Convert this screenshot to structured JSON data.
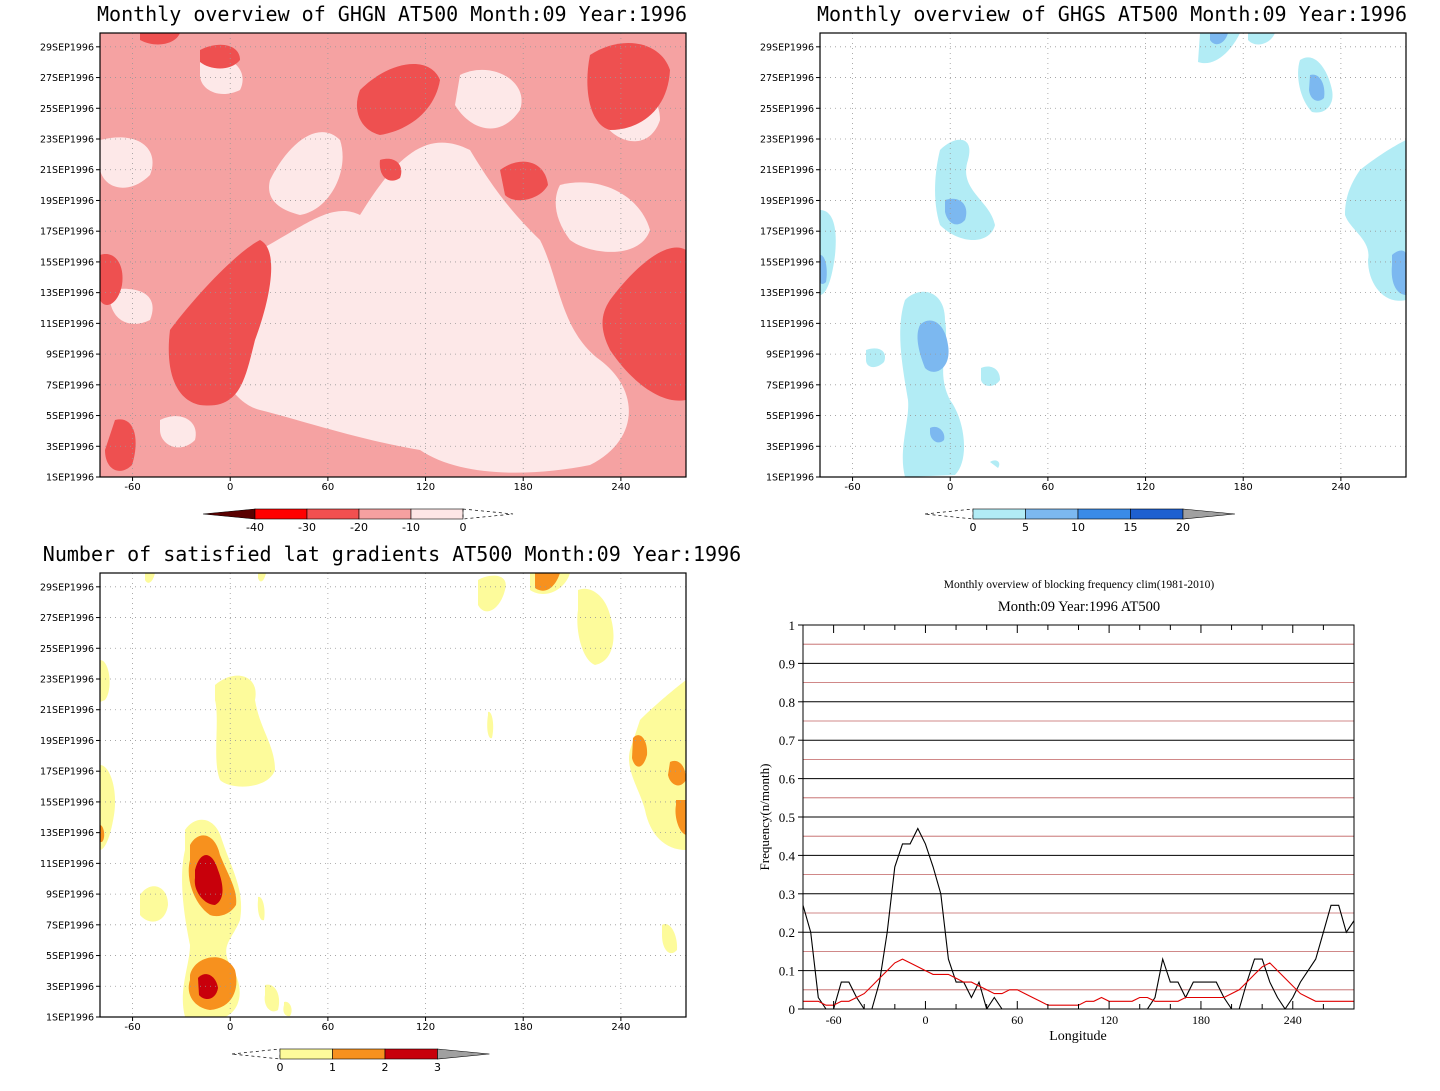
{
  "chart_data": [
    {
      "type": "heatmap",
      "title": "Monthly overview of GHGN AT500 Month:09 Year:1996",
      "y_ticks": [
        "1SEP1996",
        "3SEP1996",
        "5SEP1996",
        "7SEP1996",
        "9SEP1996",
        "11SEP1996",
        "13SEP1996",
        "15SEP1996",
        "17SEP1996",
        "19SEP1996",
        "21SEP1996",
        "23SEP1996",
        "25SEP1996",
        "27SEP1996",
        "29SEP1996"
      ],
      "x_ticks": [
        "-60",
        "0",
        "60",
        "120",
        "180",
        "240"
      ],
      "xlim": [
        -80,
        280
      ],
      "colorbar": {
        "labels": [
          "-40",
          "-30",
          "-20",
          "-10",
          "0"
        ],
        "colors": [
          "#5a0000",
          "#ff0000",
          "#f25050",
          "#f5a0a0",
          "#fde6e6"
        ]
      },
      "background_color": "#f5a2a2"
    },
    {
      "type": "heatmap",
      "title": "Monthly overview of GHGS AT500 Month:09 Year:1996",
      "y_ticks": [
        "1SEP1996",
        "3SEP1996",
        "5SEP1996",
        "7SEP1996",
        "9SEP1996",
        "11SEP1996",
        "13SEP1996",
        "15SEP1996",
        "17SEP1996",
        "19SEP1996",
        "21SEP1996",
        "23SEP1996",
        "25SEP1996",
        "27SEP1996",
        "29SEP1996"
      ],
      "x_ticks": [
        "-60",
        "0",
        "60",
        "120",
        "180",
        "240"
      ],
      "xlim": [
        -80,
        280
      ],
      "colorbar": {
        "labels": [
          "0",
          "5",
          "10",
          "15",
          "20"
        ],
        "colors": [
          "#b2ecf5",
          "#7cb8f0",
          "#3a8be8",
          "#1e60d0",
          "#a0a0a0"
        ]
      }
    },
    {
      "type": "heatmap",
      "title": "Number of satisfied lat gradients AT500 Month:09 Year:1996",
      "y_ticks": [
        "1SEP1996",
        "3SEP1996",
        "5SEP1996",
        "7SEP1996",
        "9SEP1996",
        "11SEP1996",
        "13SEP1996",
        "15SEP1996",
        "17SEP1996",
        "19SEP1996",
        "21SEP1996",
        "23SEP1996",
        "25SEP1996",
        "27SEP1996",
        "29SEP1996"
      ],
      "x_ticks": [
        "-60",
        "0",
        "60",
        "120",
        "180",
        "240"
      ],
      "xlim": [
        -80,
        280
      ],
      "colorbar": {
        "labels": [
          "0",
          "1",
          "2",
          "3"
        ],
        "colors": [
          "#fdfb9b",
          "#f7911e",
          "#c8000b",
          "#a0a0a0"
        ]
      }
    },
    {
      "type": "line",
      "title": "Monthly overview of blocking frequency clim(1981-2010)",
      "subtitle": "Month:09 Year:1996  AT500",
      "xlabel": "Longitude",
      "ylabel": "Frequency(n/month)",
      "xlim": [
        -80,
        280
      ],
      "ylim": [
        0,
        1
      ],
      "x_ticks": [
        "-60",
        "0",
        "60",
        "120",
        "180",
        "240"
      ],
      "y_ticks": [
        "0",
        "0.1",
        "0.2",
        "0.3",
        "0.4",
        "0.5",
        "0.6",
        "0.7",
        "0.8",
        "0.9",
        "1"
      ],
      "grid": true,
      "x": [
        -80,
        -75,
        -70,
        -65,
        -60,
        -55,
        -50,
        -45,
        -40,
        -35,
        -30,
        -25,
        -20,
        -15,
        -10,
        -5,
        0,
        5,
        10,
        15,
        20,
        25,
        30,
        35,
        40,
        45,
        50,
        55,
        60,
        65,
        70,
        75,
        80,
        85,
        90,
        95,
        100,
        105,
        110,
        115,
        120,
        125,
        130,
        135,
        140,
        145,
        150,
        155,
        160,
        165,
        170,
        175,
        180,
        185,
        190,
        195,
        200,
        205,
        210,
        215,
        220,
        225,
        230,
        235,
        240,
        245,
        250,
        255,
        260,
        265,
        270,
        275,
        280
      ],
      "series": [
        {
          "color": "#000000",
          "values": [
            0.27,
            0.2,
            0.03,
            0.0,
            0.0,
            0.07,
            0.07,
            0.03,
            0.0,
            0.0,
            0.07,
            0.2,
            0.37,
            0.43,
            0.43,
            0.47,
            0.43,
            0.37,
            0.3,
            0.13,
            0.07,
            0.07,
            0.03,
            0.07,
            0.0,
            0.03,
            0.0,
            0.0,
            0.0,
            0.0,
            0.0,
            0.0,
            0.0,
            0.0,
            0.0,
            0.0,
            0.0,
            0.0,
            0.0,
            0.0,
            0.0,
            0.0,
            0.0,
            0.0,
            0.0,
            0.0,
            0.03,
            0.13,
            0.07,
            0.07,
            0.03,
            0.07,
            0.07,
            0.07,
            0.07,
            0.03,
            0.0,
            0.0,
            0.07,
            0.13,
            0.13,
            0.07,
            0.03,
            0.0,
            0.03,
            0.07,
            0.1,
            0.13,
            0.2,
            0.27,
            0.27,
            0.2,
            0.23
          ]
        },
        {
          "color": "#e00000",
          "values": [
            0.02,
            0.02,
            0.02,
            0.01,
            0.01,
            0.02,
            0.02,
            0.03,
            0.04,
            0.06,
            0.08,
            0.1,
            0.12,
            0.13,
            0.12,
            0.11,
            0.1,
            0.09,
            0.09,
            0.09,
            0.08,
            0.07,
            0.07,
            0.06,
            0.05,
            0.04,
            0.04,
            0.05,
            0.05,
            0.04,
            0.03,
            0.02,
            0.01,
            0.01,
            0.01,
            0.01,
            0.01,
            0.02,
            0.02,
            0.03,
            0.02,
            0.02,
            0.02,
            0.02,
            0.03,
            0.03,
            0.02,
            0.02,
            0.02,
            0.02,
            0.03,
            0.03,
            0.03,
            0.03,
            0.03,
            0.03,
            0.04,
            0.05,
            0.07,
            0.09,
            0.11,
            0.12,
            0.1,
            0.08,
            0.06,
            0.04,
            0.03,
            0.02,
            0.02,
            0.02,
            0.02,
            0.02,
            0.02
          ]
        }
      ]
    }
  ]
}
